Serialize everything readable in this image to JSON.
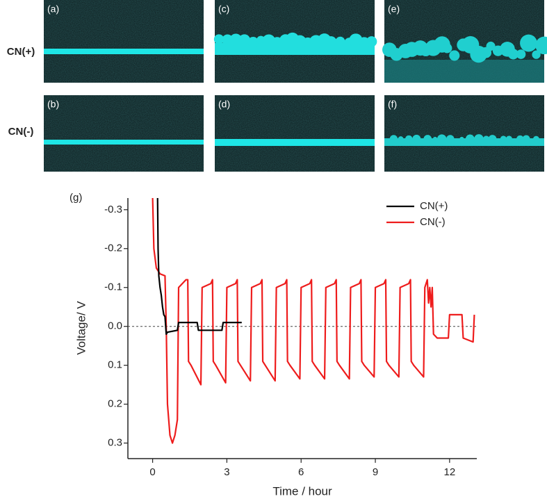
{
  "image_panels": {
    "row_labels": [
      "CN(+)",
      "CN(-)"
    ],
    "labels": [
      [
        "(a)",
        "(c)",
        "(e)"
      ],
      [
        "(b)",
        "(d)",
        "(f)"
      ]
    ]
  },
  "chart_data": {
    "type": "line",
    "panel_label": "(g)",
    "x_label": "Time / hour",
    "y_label": "Voltage/ V",
    "xlim": [
      -1,
      13.1
    ],
    "xticks": [
      0,
      3,
      6,
      9,
      12
    ],
    "ylim": [
      -0.33,
      0.34
    ],
    "y_inverted": true,
    "yticks": [
      -0.3,
      -0.2,
      -0.1,
      {
        "value": 0,
        "label": "0.0"
      },
      0.1,
      0.2,
      0.3
    ],
    "zero_line": true,
    "legend": "upper right",
    "series": [
      {
        "name": "CN(+)",
        "color": "#000000",
        "x": [
          0.2,
          0.22,
          0.25,
          0.3,
          0.35,
          0.4,
          0.45,
          0.5,
          0.55,
          0.6,
          1.0,
          1.05,
          1.8,
          1.85,
          2.8,
          2.85,
          3.6
        ],
        "values": [
          -0.33,
          -0.2,
          -0.13,
          -0.1,
          -0.08,
          -0.05,
          -0.03,
          -0.025,
          0.02,
          0.015,
          0.01,
          -0.01,
          -0.01,
          0.01,
          0.01,
          -0.01,
          -0.01
        ]
      },
      {
        "name": "CN(-)",
        "color": "#ee1c1c",
        "x": [
          0,
          0.05,
          0.15,
          0.3,
          0.5,
          0.55,
          0.6,
          0.7,
          0.8,
          0.9,
          1.0,
          1.05,
          1.35,
          1.42,
          1.45,
          1.55,
          1.95,
          2.0,
          2.35,
          2.42,
          2.45,
          2.55,
          2.95,
          3.0,
          3.35,
          3.42,
          3.45,
          3.55,
          3.95,
          4.0,
          4.35,
          4.42,
          4.45,
          4.55,
          4.95,
          5.0,
          5.35,
          5.42,
          5.45,
          5.55,
          5.95,
          6.0,
          6.35,
          6.42,
          6.45,
          6.55,
          6.95,
          7.0,
          7.35,
          7.42,
          7.45,
          7.55,
          7.95,
          8.0,
          8.35,
          8.42,
          8.45,
          8.55,
          8.95,
          9.0,
          9.35,
          9.42,
          9.45,
          9.55,
          9.95,
          10.0,
          10.35,
          10.42,
          10.45,
          10.55,
          10.95,
          11.0,
          11.1,
          11.15,
          11.2,
          11.25,
          11.3,
          11.35,
          11.5,
          11.95,
          12.0,
          12.5,
          12.55,
          12.95,
          13.0
        ],
        "values": [
          -0.33,
          -0.2,
          -0.15,
          -0.135,
          -0.13,
          0.0,
          0.2,
          0.28,
          0.3,
          0.28,
          0.24,
          -0.1,
          -0.12,
          -0.12,
          0.09,
          0.1,
          0.15,
          -0.1,
          -0.11,
          -0.12,
          0.09,
          0.1,
          0.145,
          -0.1,
          -0.11,
          -0.12,
          0.09,
          0.1,
          0.14,
          -0.1,
          -0.11,
          -0.12,
          0.09,
          0.1,
          0.14,
          -0.1,
          -0.11,
          -0.12,
          0.09,
          0.1,
          0.135,
          -0.1,
          -0.11,
          -0.12,
          0.09,
          0.1,
          0.135,
          -0.1,
          -0.11,
          -0.12,
          0.09,
          0.1,
          0.135,
          -0.1,
          -0.11,
          -0.12,
          0.09,
          0.1,
          0.13,
          -0.1,
          -0.11,
          -0.12,
          0.09,
          0.1,
          0.13,
          -0.1,
          -0.11,
          -0.12,
          0.09,
          0.1,
          0.13,
          -0.1,
          -0.12,
          -0.06,
          -0.1,
          -0.05,
          -0.1,
          0.02,
          0.03,
          0.03,
          -0.03,
          -0.03,
          0.03,
          0.04,
          -0.03
        ]
      }
    ]
  }
}
